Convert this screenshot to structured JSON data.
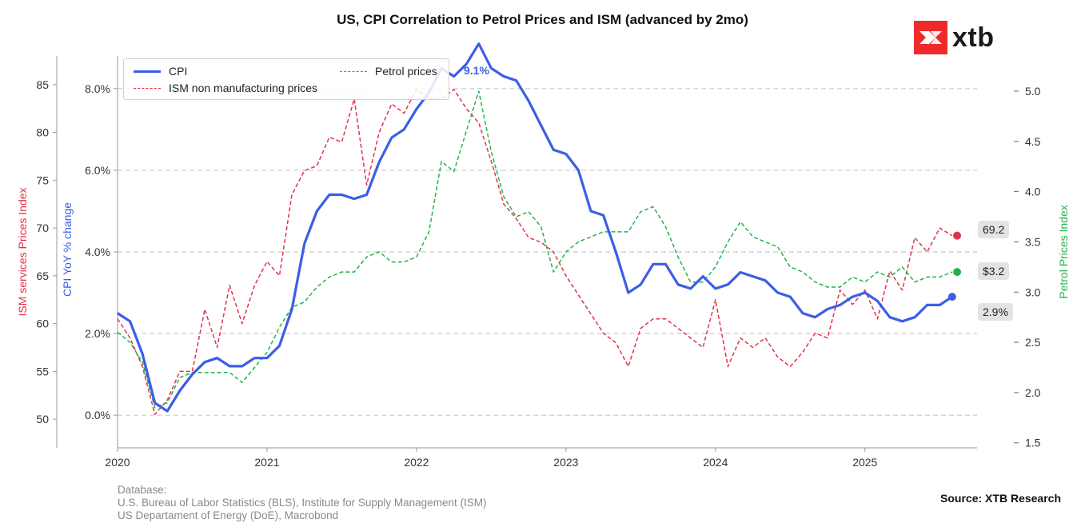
{
  "title": "US, CPI Correlation to Petrol Prices and ISM (advanced by 2mo)",
  "logo": {
    "text": "xtb",
    "color": "#ee2b2b"
  },
  "footnote": [
    "Database:",
    "U.S. Bureau of Labor Statistics (BLS), Institute for Supply Management (ISM)",
    "US Departament of Energy (DoE), Macrobond"
  ],
  "source": "Source: XTB Research",
  "chart_data": {
    "type": "line",
    "title": "US, CPI Correlation to Petrol Prices and ISM (advanced by 2mo)",
    "x_ticks": [
      "2020",
      "2021",
      "2022",
      "2023",
      "2024",
      "2025"
    ],
    "x_start": "2020-01",
    "x_range": [
      "2020-01",
      "2025-10"
    ],
    "axes": {
      "ism": {
        "label": "ISM services Prices Index",
        "range": [
          47,
          88
        ],
        "ticks": [
          "50",
          "55",
          "60",
          "65",
          "70",
          "75",
          "80",
          "85"
        ],
        "color": "#e0334a"
      },
      "cpi": {
        "label": "CPI YoY % change",
        "range": [
          -0.8,
          8.8
        ],
        "ticks": [
          "0.0%",
          "2.0%",
          "4.0%",
          "6.0%",
          "8.0%"
        ],
        "color": "#3b5ee6"
      },
      "petrol": {
        "label": "Petrol Prices Index",
        "range": [
          1.45,
          5.35
        ],
        "ticks": [
          "1.5",
          "2.0",
          "2.5",
          "3.0",
          "3.5",
          "4.0",
          "4.5",
          "5.0"
        ],
        "color": "#22b24c"
      }
    },
    "grid": "horizontal dashed at CPI ticks",
    "legend": {
      "placement": "top-left",
      "items": [
        "CPI",
        "ISM non manufacturing prices",
        "Petrol prices"
      ]
    },
    "series": [
      {
        "name": "CPI",
        "axis": "cpi",
        "color": "#3b5ee6",
        "style": "solid",
        "values": [
          2.5,
          2.3,
          1.5,
          0.3,
          0.1,
          0.6,
          1.0,
          1.3,
          1.4,
          1.2,
          1.2,
          1.4,
          1.4,
          1.7,
          2.6,
          4.2,
          5.0,
          5.4,
          5.4,
          5.3,
          5.4,
          6.2,
          6.8,
          7.0,
          7.5,
          7.9,
          8.5,
          8.3,
          8.6,
          9.1,
          8.5,
          8.3,
          8.2,
          7.7,
          7.1,
          6.5,
          6.4,
          6.0,
          5.0,
          4.9,
          4.0,
          3.0,
          3.2,
          3.7,
          3.7,
          3.2,
          3.1,
          3.4,
          3.1,
          3.2,
          3.5,
          3.4,
          3.3,
          3.0,
          2.9,
          2.5,
          2.4,
          2.6,
          2.7,
          2.9,
          3.0,
          2.8,
          2.4,
          2.3,
          2.4,
          2.7,
          2.7,
          2.9
        ]
      },
      {
        "name": "ISM non manufacturing prices",
        "axis": "ism",
        "color": "#e0334a",
        "style": "dashed",
        "values": [
          60.5,
          58.5,
          55.5,
          50.5,
          52,
          55,
          55,
          61.5,
          57.5,
          64,
          60,
          64,
          66.5,
          65,
          73.5,
          76,
          76.5,
          79.5,
          79,
          83.5,
          74.5,
          80,
          83,
          82,
          84.5,
          83.5,
          83.5,
          84.5,
          82.5,
          81,
          77,
          72.5,
          71,
          69,
          68.5,
          67.5,
          65,
          63,
          61,
          59,
          58,
          55.5,
          59.5,
          60.5,
          60.5,
          59.5,
          58.5,
          57.5,
          62.5,
          55.5,
          58.5,
          57.5,
          58.5,
          56.5,
          55.5,
          57,
          59,
          58.5,
          63.5,
          62,
          63.5,
          60.5,
          65.5,
          63.5,
          69,
          67.5,
          70,
          69.2
        ]
      },
      {
        "name": "Petrol prices",
        "axis": "petrol",
        "color": "#22b24c",
        "style": "dashed",
        "values": [
          2.6,
          2.5,
          2.3,
          1.85,
          1.9,
          2.15,
          2.2,
          2.2,
          2.2,
          2.2,
          2.1,
          2.25,
          2.4,
          2.65,
          2.85,
          2.9,
          3.05,
          3.15,
          3.2,
          3.2,
          3.35,
          3.4,
          3.3,
          3.3,
          3.35,
          3.6,
          4.3,
          4.2,
          4.6,
          5.0,
          4.4,
          3.95,
          3.75,
          3.8,
          3.65,
          3.2,
          3.4,
          3.5,
          3.55,
          3.6,
          3.6,
          3.6,
          3.8,
          3.85,
          3.65,
          3.35,
          3.1,
          3.1,
          3.25,
          3.5,
          3.7,
          3.55,
          3.5,
          3.45,
          3.25,
          3.2,
          3.1,
          3.05,
          3.05,
          3.15,
          3.1,
          3.2,
          3.15,
          3.25,
          3.1,
          3.15,
          3.15,
          3.2
        ]
      }
    ],
    "annotations": {
      "peak_label": "9.1%",
      "last_labels": {
        "ism": "69.2",
        "petrol": "$3.2",
        "cpi": "2.9%"
      }
    }
  }
}
